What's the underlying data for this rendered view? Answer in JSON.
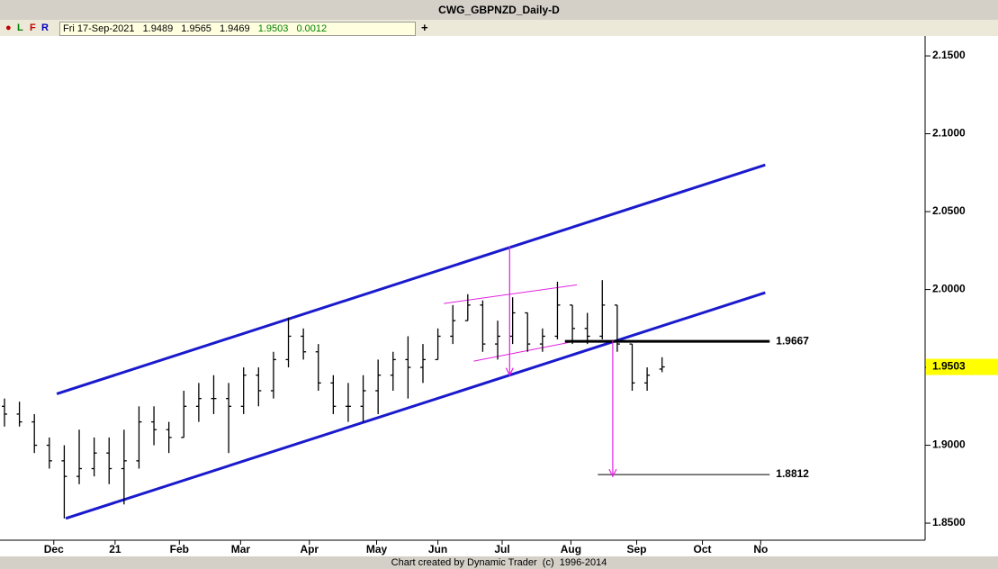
{
  "toolbar": {
    "buttons": [
      "L",
      "F",
      "R"
    ],
    "date": "Fri 17-Sep-2021",
    "change": 0.0012
  },
  "footer": "Chart created by Dynamic Trader  (c)  1996-2014",
  "chart_data": {
    "type": "ohlc",
    "title": "CWG_GBPNZD_Daily-D",
    "x": [
      0,
      1,
      2,
      3,
      4,
      5,
      6,
      7,
      8,
      9,
      10,
      11,
      12,
      13,
      14,
      15,
      16,
      17,
      18,
      19,
      20,
      21,
      22,
      23,
      24,
      25,
      26,
      27,
      28,
      29,
      30,
      31,
      32,
      33,
      34,
      35,
      36,
      37,
      38,
      39,
      40,
      41,
      42,
      43,
      44
    ],
    "open": [
      1.925,
      1.92,
      1.915,
      1.9,
      1.89,
      1.88,
      1.885,
      1.895,
      1.885,
      1.89,
      1.915,
      1.91,
      1.905,
      1.925,
      1.93,
      1.93,
      1.925,
      1.945,
      1.935,
      1.955,
      1.97,
      1.96,
      1.94,
      1.925,
      1.925,
      1.935,
      1.945,
      1.955,
      1.95,
      1.955,
      1.97,
      1.98,
      1.99,
      1.965,
      1.97,
      1.985,
      1.965,
      1.97,
      1.99,
      1.975,
      1.97,
      1.99,
      1.965,
      1.94,
      1.9489
    ],
    "high": [
      1.93,
      1.928,
      1.92,
      1.905,
      1.9,
      1.91,
      1.905,
      1.905,
      1.91,
      1.925,
      1.925,
      1.915,
      1.935,
      1.94,
      1.945,
      1.94,
      1.95,
      1.95,
      1.96,
      1.982,
      1.975,
      1.965,
      1.945,
      1.94,
      1.945,
      1.955,
      1.96,
      1.97,
      1.965,
      1.975,
      1.99,
      1.997,
      1.993,
      1.98,
      1.995,
      1.985,
      1.975,
      2.005,
      1.99,
      1.985,
      2.006,
      1.99,
      1.965,
      1.95,
      1.9565
    ],
    "low": [
      1.912,
      1.912,
      1.895,
      1.885,
      1.853,
      1.875,
      1.88,
      1.875,
      1.862,
      1.885,
      1.9,
      1.895,
      1.905,
      1.915,
      1.92,
      1.895,
      1.92,
      1.925,
      1.93,
      1.95,
      1.955,
      1.935,
      1.92,
      1.915,
      1.915,
      1.92,
      1.935,
      1.93,
      1.94,
      1.955,
      1.965,
      1.98,
      1.96,
      1.955,
      1.965,
      1.96,
      1.96,
      1.968,
      1.965,
      1.965,
      1.968,
      1.96,
      1.935,
      1.935,
      1.9469
    ],
    "close": [
      1.92,
      1.915,
      1.9,
      1.89,
      1.88,
      1.885,
      1.895,
      1.885,
      1.89,
      1.915,
      1.91,
      1.905,
      1.925,
      1.93,
      1.93,
      1.925,
      1.945,
      1.935,
      1.955,
      1.97,
      1.96,
      1.94,
      1.925,
      1.925,
      1.935,
      1.945,
      1.955,
      1.95,
      1.955,
      1.97,
      1.98,
      1.99,
      1.965,
      1.97,
      1.985,
      1.965,
      1.97,
      1.99,
      1.975,
      1.97,
      1.99,
      1.965,
      1.94,
      1.945,
      1.9503
    ],
    "color": "#000000",
    "xlim": [
      -0.3,
      61.6
    ],
    "xticks": [
      {
        "value": 3.3,
        "label": "Dec"
      },
      {
        "value": 7.4,
        "label": "21"
      },
      {
        "value": 11.7,
        "label": "Feb"
      },
      {
        "value": 15.8,
        "label": "Mar"
      },
      {
        "value": 20.4,
        "label": "Apr"
      },
      {
        "value": 24.9,
        "label": "May"
      },
      {
        "value": 29.0,
        "label": "Jun"
      },
      {
        "value": 33.3,
        "label": "Jul"
      },
      {
        "value": 37.9,
        "label": "Aug"
      },
      {
        "value": 42.3,
        "label": "Sep"
      },
      {
        "value": 46.7,
        "label": "Oct"
      },
      {
        "value": 50.6,
        "label": "No"
      }
    ],
    "ylim": [
      1.8402,
      2.1616
    ],
    "yticks": [
      {
        "value": 1.85,
        "label": "1.8500"
      },
      {
        "value": 1.9,
        "label": "1.9000"
      },
      {
        "value": 1.95,
        "label": "1.9500"
      },
      {
        "value": 2.0,
        "label": "2.0000"
      },
      {
        "value": 2.05,
        "label": "2.0500"
      },
      {
        "value": 2.1,
        "label": "2.1000"
      },
      {
        "value": 2.15,
        "label": "2.1500"
      }
    ],
    "trendlines": [
      {
        "color": "#1a1acd",
        "width": 3,
        "x": [
          3.5,
          50.9
        ],
        "y": [
          1.933,
          2.08
        ]
      },
      {
        "color": "#1a1acd",
        "width": 3,
        "x": [
          4.1,
          50.9
        ],
        "y": [
          1.853,
          1.998
        ]
      },
      {
        "color": "#e020e0",
        "width": 1,
        "x": [
          29.4,
          38.3
        ],
        "y": [
          1.991,
          2.003
        ]
      },
      {
        "color": "#e020e0",
        "width": 1,
        "x": [
          31.4,
          38.3
        ],
        "y": [
          1.954,
          1.967
        ]
      }
    ],
    "arrows": [
      {
        "color": "#e020e0",
        "x": [
          33.8,
          33.8
        ],
        "y": [
          2.028,
          1.945
        ]
      },
      {
        "color": "#e020e0",
        "x": [
          40.7,
          40.7
        ],
        "y": [
          1.967,
          1.88
        ]
      }
    ],
    "levels": [
      {
        "value": 1.9667,
        "x": [
          37.5,
          51.2
        ],
        "color": "#000000",
        "width": 3
      },
      {
        "value": 1.8812,
        "x": [
          39.7,
          51.2
        ],
        "color": "#000000",
        "width": 1
      }
    ],
    "last_price_color": "#ffff00"
  }
}
